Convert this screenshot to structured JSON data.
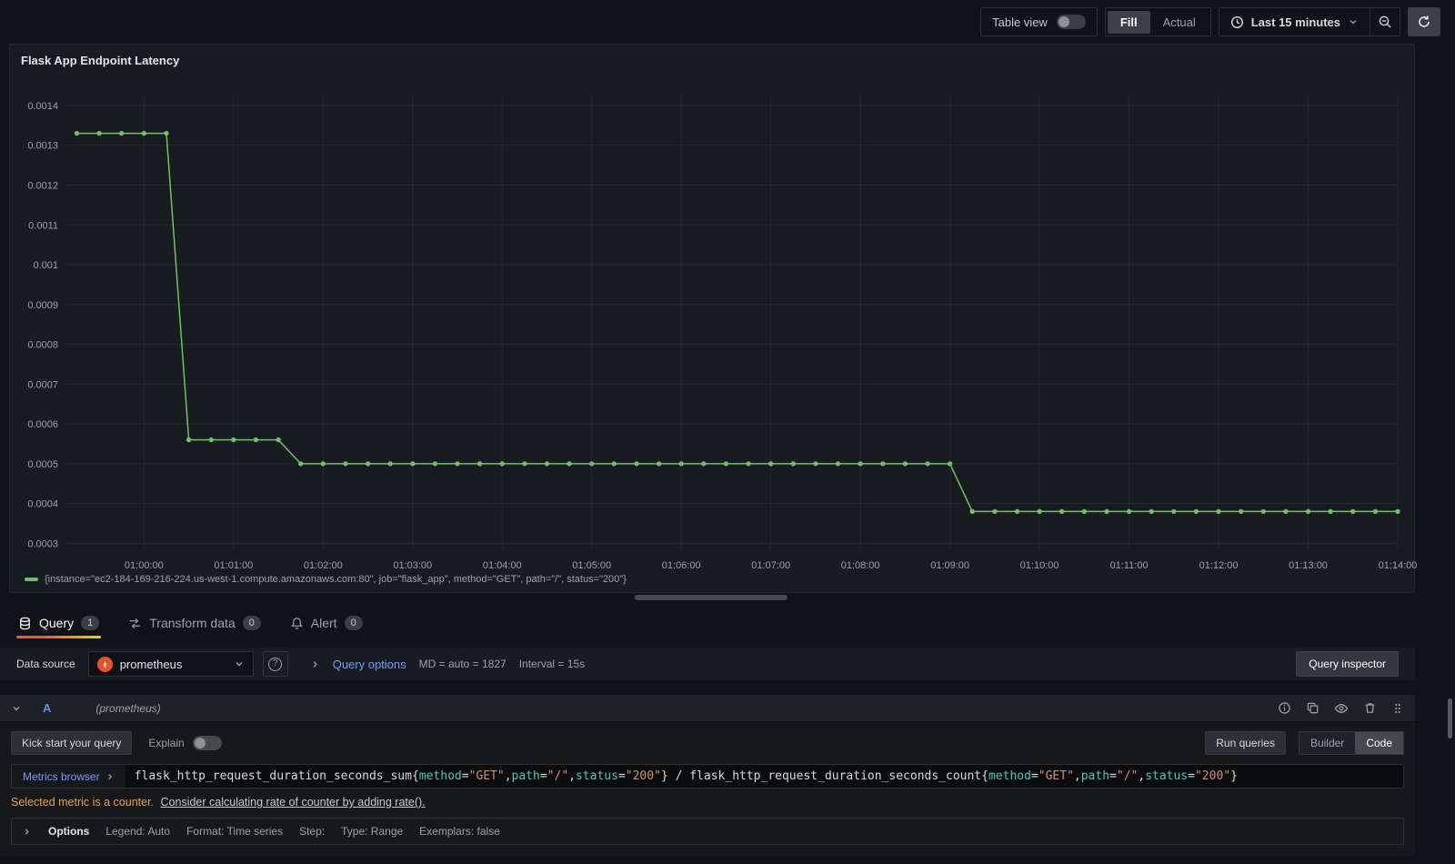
{
  "header": {
    "table_view_label": "Table view",
    "fill_label": "Fill",
    "actual_label": "Actual",
    "time_range_label": "Last 15 minutes"
  },
  "panel": {
    "title": "Flask App Endpoint Latency",
    "legend": "{instance=\"ec2-184-169-216-224.us-west-1.compute.amazonaws.com:80\", job=\"flask_app\", method=\"GET\", path=\"/\", status=\"200\"}"
  },
  "chart_data": {
    "type": "line",
    "title": "Flask App Endpoint Latency",
    "series_name": "{instance=\"ec2-184-169-216-224.us-west-1.compute.amazonaws.com:80\", job=\"flask_app\", method=\"GET\", path=\"/\", status=\"200\"}",
    "color": "#73bf69",
    "grid": true,
    "legend_position": "bottom-left",
    "x_range": [
      "00:59:08",
      "01:14:00"
    ],
    "y_range": [
      0.000285,
      0.001425
    ],
    "y_ticks": [
      {
        "value": 0.0003,
        "label": "0.0003"
      },
      {
        "value": 0.0004,
        "label": "0.0004"
      },
      {
        "value": 0.0005,
        "label": "0.0005"
      },
      {
        "value": 0.0006,
        "label": "0.0006"
      },
      {
        "value": 0.0007,
        "label": "0.0007"
      },
      {
        "value": 0.0008,
        "label": "0.0008"
      },
      {
        "value": 0.0009,
        "label": "0.0009"
      },
      {
        "value": 0.001,
        "label": "0.001"
      },
      {
        "value": 0.0011,
        "label": "0.0011"
      },
      {
        "value": 0.0012,
        "label": "0.0012"
      },
      {
        "value": 0.0013,
        "label": "0.0013"
      },
      {
        "value": 0.0014,
        "label": "0.0014"
      }
    ],
    "x_ticks": [
      "01:00:00",
      "01:01:00",
      "01:02:00",
      "01:03:00",
      "01:04:00",
      "01:05:00",
      "01:06:00",
      "01:07:00",
      "01:08:00",
      "01:09:00",
      "01:10:00",
      "01:11:00",
      "01:12:00",
      "01:13:00",
      "01:14:00"
    ],
    "points": [
      [
        "00:59:15",
        0.00133
      ],
      [
        "00:59:30",
        0.00133
      ],
      [
        "00:59:45",
        0.00133
      ],
      [
        "01:00:00",
        0.00133
      ],
      [
        "01:00:15",
        0.00133
      ],
      [
        "01:00:30",
        0.00056
      ],
      [
        "01:00:45",
        0.00056
      ],
      [
        "01:01:00",
        0.00056
      ],
      [
        "01:01:15",
        0.00056
      ],
      [
        "01:01:30",
        0.00056
      ],
      [
        "01:01:45",
        0.0005
      ],
      [
        "01:02:00",
        0.0005
      ],
      [
        "01:02:15",
        0.0005
      ],
      [
        "01:02:30",
        0.0005
      ],
      [
        "01:02:45",
        0.0005
      ],
      [
        "01:03:00",
        0.0005
      ],
      [
        "01:03:15",
        0.0005
      ],
      [
        "01:03:30",
        0.0005
      ],
      [
        "01:03:45",
        0.0005
      ],
      [
        "01:04:00",
        0.0005
      ],
      [
        "01:04:15",
        0.0005
      ],
      [
        "01:04:30",
        0.0005
      ],
      [
        "01:04:45",
        0.0005
      ],
      [
        "01:05:00",
        0.0005
      ],
      [
        "01:05:15",
        0.0005
      ],
      [
        "01:05:30",
        0.0005
      ],
      [
        "01:05:45",
        0.0005
      ],
      [
        "01:06:00",
        0.0005
      ],
      [
        "01:06:15",
        0.0005
      ],
      [
        "01:06:30",
        0.0005
      ],
      [
        "01:06:45",
        0.0005
      ],
      [
        "01:07:00",
        0.0005
      ],
      [
        "01:07:15",
        0.0005
      ],
      [
        "01:07:30",
        0.0005
      ],
      [
        "01:07:45",
        0.0005
      ],
      [
        "01:08:00",
        0.0005
      ],
      [
        "01:08:15",
        0.0005
      ],
      [
        "01:08:30",
        0.0005
      ],
      [
        "01:08:45",
        0.0005
      ],
      [
        "01:09:00",
        0.0005
      ],
      [
        "01:09:15",
        0.00038
      ],
      [
        "01:09:30",
        0.00038
      ],
      [
        "01:09:45",
        0.00038
      ],
      [
        "01:10:00",
        0.00038
      ],
      [
        "01:10:15",
        0.00038
      ],
      [
        "01:10:30",
        0.00038
      ],
      [
        "01:10:45",
        0.00038
      ],
      [
        "01:11:00",
        0.00038
      ],
      [
        "01:11:15",
        0.00038
      ],
      [
        "01:11:30",
        0.00038
      ],
      [
        "01:11:45",
        0.00038
      ],
      [
        "01:12:00",
        0.00038
      ],
      [
        "01:12:15",
        0.00038
      ],
      [
        "01:12:30",
        0.00038
      ],
      [
        "01:12:45",
        0.00038
      ],
      [
        "01:13:00",
        0.00038
      ],
      [
        "01:13:15",
        0.00038
      ],
      [
        "01:13:30",
        0.00038
      ],
      [
        "01:13:45",
        0.00038
      ],
      [
        "01:14:00",
        0.00038
      ]
    ]
  },
  "tabs": [
    {
      "label": "Query",
      "count": "1"
    },
    {
      "label": "Transform data",
      "count": "0"
    },
    {
      "label": "Alert",
      "count": "0"
    }
  ],
  "query_config": {
    "datasource_label": "Data source",
    "datasource_value": "prometheus",
    "query_options_label": "Query options",
    "md_text": "MD = auto = 1827",
    "interval_text": "Interval = 15s",
    "inspector_label": "Query inspector"
  },
  "query_row": {
    "ref_id": "A",
    "datasource_hint": "(prometheus)",
    "kick_start_label": "Kick start your query",
    "explain_label": "Explain",
    "run_queries_label": "Run queries",
    "builder_label": "Builder",
    "code_label": "Code",
    "metrics_browser_label": "Metrics browser",
    "query_tokens": [
      {
        "t": "flask_http_request_duration_seconds_sum",
        "c": "metric"
      },
      {
        "t": "{",
        "c": "brace"
      },
      {
        "t": "method",
        "c": "label"
      },
      {
        "t": "=",
        "c": "op"
      },
      {
        "t": "\"GET\"",
        "c": "string"
      },
      {
        "t": ",",
        "c": "brace"
      },
      {
        "t": "path",
        "c": "label"
      },
      {
        "t": "=",
        "c": "op"
      },
      {
        "t": "\"/\"",
        "c": "string"
      },
      {
        "t": ",",
        "c": "brace"
      },
      {
        "t": "status",
        "c": "label"
      },
      {
        "t": "=",
        "c": "op"
      },
      {
        "t": "\"200\"",
        "c": "string"
      },
      {
        "t": "}",
        "c": "brace"
      },
      {
        "t": " / ",
        "c": "op"
      },
      {
        "t": "flask_http_request_duration_seconds_count",
        "c": "metric"
      },
      {
        "t": "{",
        "c": "brace"
      },
      {
        "t": "method",
        "c": "label"
      },
      {
        "t": "=",
        "c": "op"
      },
      {
        "t": "\"GET\"",
        "c": "string"
      },
      {
        "t": ",",
        "c": "brace"
      },
      {
        "t": "path",
        "c": "label"
      },
      {
        "t": "=",
        "c": "op"
      },
      {
        "t": "\"/\"",
        "c": "string"
      },
      {
        "t": ",",
        "c": "brace"
      },
      {
        "t": "status",
        "c": "label"
      },
      {
        "t": "=",
        "c": "op"
      },
      {
        "t": "\"200\"",
        "c": "string"
      },
      {
        "t": "}",
        "c": "brace"
      }
    ],
    "warning_strong": "Selected metric is a counter.",
    "warning_link": "Consider calculating rate of counter by adding rate().",
    "options": {
      "title": "Options",
      "legend": "Legend: Auto",
      "format": "Format: Time series",
      "step": "Step:",
      "type": "Type: Range",
      "exemplars": "Exemplars: false"
    }
  }
}
